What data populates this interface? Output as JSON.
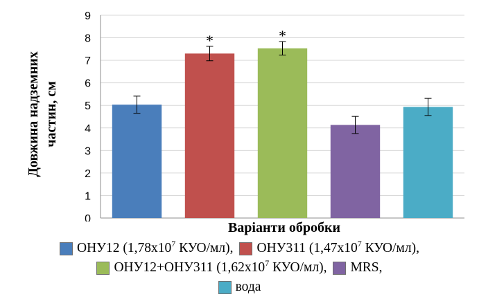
{
  "chart_data": {
    "type": "bar",
    "title": "",
    "xlabel": "Варіанти обробки",
    "ylabel_line1": "Довжина надземних",
    "ylabel_line2": "частин, см",
    "ylim": [
      0,
      9
    ],
    "yticks": [
      "0",
      "1",
      "2",
      "3",
      "4",
      "5",
      "6",
      "7",
      "8",
      "9"
    ],
    "grid": true,
    "legend_position": "bottom",
    "significance_marker": "*",
    "bars": [
      {
        "name": "ОНУ12 (1,78x10⁷ КУО/мл)",
        "value": 5.03,
        "error": 0.38,
        "color": "#4a7ebb",
        "significant": false
      },
      {
        "name": "ОНУ311 (1,47x10⁷ КУО/мл)",
        "value": 7.3,
        "error": 0.32,
        "color": "#c0504d",
        "significant": true
      },
      {
        "name": "ОНУ12+ОНУ311 (1,62x10⁷ КУО/мл)",
        "value": 7.53,
        "error": 0.3,
        "color": "#9bbb59",
        "significant": true
      },
      {
        "name": "MRS",
        "value": 4.13,
        "error": 0.38,
        "color": "#8064a2",
        "significant": false
      },
      {
        "name": "вода",
        "value": 4.93,
        "error": 0.38,
        "color": "#4bacc6",
        "significant": false
      }
    ]
  },
  "legend": {
    "l1a_pre": "ОНУ12 (1,78x10",
    "l1a_sup": "7",
    "l1a_post": " КУО/мл),",
    "l1b_pre": "ОНУ311 (1,47x10",
    "l1b_sup": "7",
    "l1b_post": " КУО/мл),",
    "l2a_pre": "ОНУ12+ОНУ311 (1,62x10",
    "l2a_sup": "7",
    "l2a_post": " КУО/мл),",
    "l2b": "MRS,",
    "l3": "вода"
  }
}
